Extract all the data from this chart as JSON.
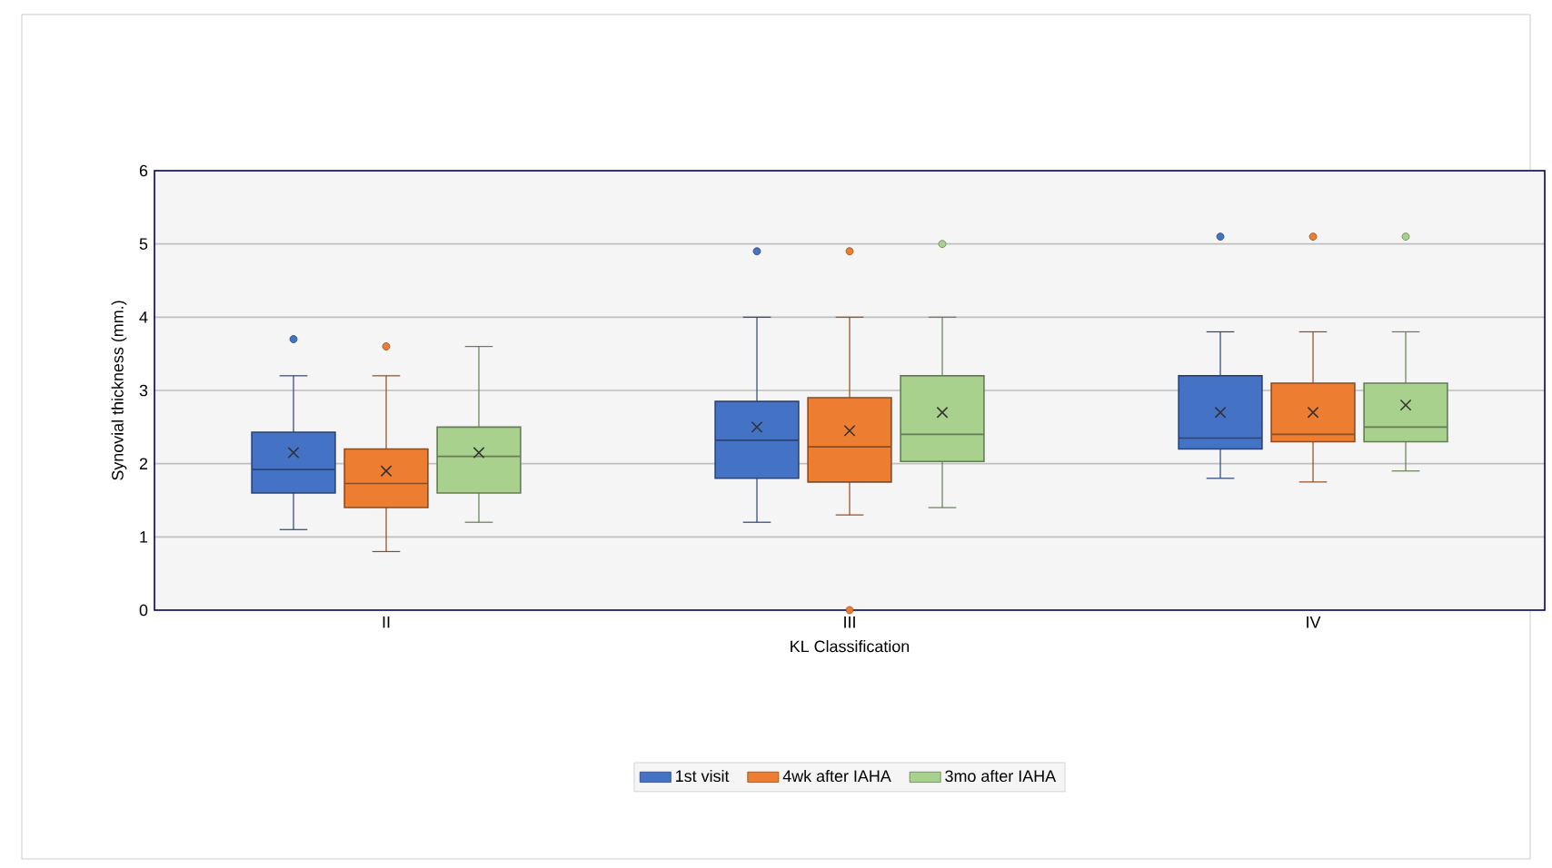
{
  "chart_data": {
    "type": "box",
    "xlabel": "KL Classification",
    "ylabel": "Synovial thickness (mm.)",
    "categories": [
      "II",
      "III",
      "IV"
    ],
    "ylim": [
      0,
      6
    ],
    "yticks": [
      0,
      1,
      2,
      3,
      4,
      5,
      6
    ],
    "grid": "y",
    "legend": "bottom",
    "series": [
      {
        "name": "1st visit",
        "color": "#4472c4",
        "boxes": [
          {
            "low": 1.1,
            "q1": 1.6,
            "median": 1.92,
            "q3": 2.43,
            "high": 3.2,
            "mean": 2.15,
            "outliers": [
              3.7
            ]
          },
          {
            "low": 1.2,
            "q1": 1.8,
            "median": 2.32,
            "q3": 2.85,
            "high": 4.0,
            "mean": 2.5,
            "outliers": [
              4.9
            ]
          },
          {
            "low": 1.8,
            "q1": 2.2,
            "median": 2.35,
            "q3": 3.2,
            "high": 3.8,
            "mean": 2.7,
            "outliers": [
              5.1
            ]
          }
        ]
      },
      {
        "name": "4wk after IAHA",
        "color": "#ed7d31",
        "boxes": [
          {
            "low": 0.8,
            "q1": 1.4,
            "median": 1.73,
            "q3": 2.2,
            "high": 3.2,
            "mean": 1.9,
            "outliers": [
              3.6
            ]
          },
          {
            "low": 1.3,
            "q1": 1.75,
            "median": 2.23,
            "q3": 2.9,
            "high": 4.0,
            "mean": 2.45,
            "outliers": [
              4.9,
              0
            ]
          },
          {
            "low": 1.75,
            "q1": 2.3,
            "median": 2.4,
            "q3": 3.1,
            "high": 3.8,
            "mean": 2.7,
            "outliers": [
              5.1
            ]
          }
        ]
      },
      {
        "name": "3mo after IAHA",
        "color": "#a9d18e",
        "boxes": [
          {
            "low": 1.2,
            "q1": 1.6,
            "median": 2.1,
            "q3": 2.5,
            "high": 3.6,
            "mean": 2.15
          },
          {
            "low": 1.4,
            "q1": 2.03,
            "median": 2.4,
            "q3": 3.2,
            "high": 4.0,
            "mean": 2.7,
            "outliers": [
              5.0
            ]
          },
          {
            "low": 1.9,
            "q1": 2.3,
            "median": 2.5,
            "q3": 3.1,
            "high": 3.8,
            "mean": 2.8,
            "outliers": [
              5.1
            ]
          }
        ]
      }
    ]
  }
}
